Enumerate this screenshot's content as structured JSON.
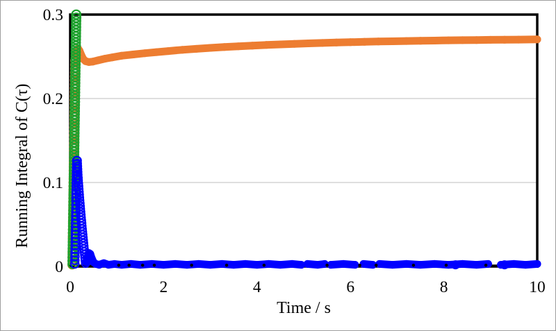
{
  "figure": {
    "background": "#ffffff",
    "border_color": "#9d9d9d"
  },
  "chart_data": {
    "type": "scatter",
    "title": "",
    "xlabel": "Time / s",
    "ylabel": "Running Integral of C(τ)",
    "xlim": [
      0,
      10
    ],
    "ylim": [
      0,
      0.3
    ],
    "x_ticks": [
      0,
      2,
      4,
      6,
      8,
      10
    ],
    "x_tick_labels": [
      "0",
      "2",
      "4",
      "6",
      "8",
      "10"
    ],
    "y_ticks": [
      0,
      0.1,
      0.2,
      0.3
    ],
    "y_tick_labels": [
      "0",
      "0.1",
      "0.2",
      "0.3"
    ],
    "grid": {
      "horizontal": [
        0.1,
        0.2
      ],
      "color": "#c9c9c9",
      "width": 1.3
    },
    "axes_border_color": "#000000",
    "legend": "none",
    "series": [
      {
        "name": "baseline-zero",
        "color": "#000000",
        "marker": "none",
        "marker_size": 0,
        "line_width": 3,
        "points": [
          [
            0.02,
            0.001
          ],
          [
            4.95,
            0.001
          ],
          null,
          [
            5.1,
            0.001
          ],
          [
            10,
            0.001
          ]
        ]
      },
      {
        "name": "orange-initial-rise",
        "color": "#ED7D31",
        "marker": "open-circle",
        "marker_size": 11,
        "stroke_width": 2.4,
        "line_width": 0,
        "column": {
          "t0": 0.04,
          "t1": 0.1,
          "v0": 0.002,
          "v1": 0.245,
          "n": 52,
          "power": 1
        }
      },
      {
        "name": "orange-running-integral",
        "color": "#ED7D31",
        "marker": "filled-circle",
        "marker_size": 11,
        "line_width": 11,
        "points": [
          [
            0.12,
            0.252
          ],
          [
            0.14,
            0.258
          ],
          [
            0.17,
            0.2595
          ],
          [
            0.2,
            0.257
          ],
          [
            0.24,
            0.2515
          ],
          [
            0.28,
            0.247
          ],
          [
            0.33,
            0.2445
          ],
          [
            0.4,
            0.2435
          ],
          [
            0.48,
            0.244
          ],
          [
            0.6,
            0.2455
          ],
          [
            0.75,
            0.2475
          ],
          [
            0.9,
            0.249
          ],
          [
            1.1,
            0.251
          ],
          [
            1.35,
            0.2525
          ],
          [
            1.6,
            0.254
          ],
          [
            1.85,
            0.2553
          ],
          [
            2.1,
            0.2565
          ],
          [
            2.4,
            0.258
          ],
          [
            2.7,
            0.2592
          ],
          [
            3.0,
            0.2603
          ],
          [
            3.3,
            0.2613
          ],
          [
            3.6,
            0.2622
          ],
          [
            3.9,
            0.263
          ],
          [
            4.2,
            0.2638
          ],
          [
            4.5,
            0.2645
          ],
          [
            4.8,
            0.2651
          ],
          [
            5.1,
            0.2657
          ],
          [
            5.4,
            0.2662
          ],
          [
            5.7,
            0.2667
          ],
          [
            6.0,
            0.2671
          ],
          [
            6.3,
            0.2675
          ],
          [
            6.6,
            0.2679
          ],
          [
            6.9,
            0.2682
          ],
          [
            7.2,
            0.2685
          ],
          [
            7.5,
            0.2688
          ],
          [
            7.8,
            0.269
          ],
          [
            8.1,
            0.2693
          ],
          [
            8.4,
            0.2695
          ],
          [
            8.7,
            0.2697
          ],
          [
            9.0,
            0.2699
          ],
          [
            9.3,
            0.27
          ],
          [
            9.6,
            0.2702
          ],
          [
            10.0,
            0.2704
          ]
        ]
      },
      {
        "name": "green-initial-rise",
        "color": "#1FA12E",
        "marker": "open-circle",
        "marker_size": 12.5,
        "stroke_width": 2.2,
        "line_width": 0,
        "column": {
          "t0": 0.05,
          "t1": 0.13,
          "v0": 0.003,
          "v1": 0.3,
          "n": 80,
          "power": 1
        }
      },
      {
        "name": "blue-initial-rise",
        "color": "#0000FF",
        "marker": "open-circle",
        "marker_size": 11.5,
        "stroke_width": 2,
        "line_width": 0,
        "column": {
          "t0": 0.1,
          "t1": 0.14,
          "v0": 0.003,
          "v1": 0.126,
          "n": 28,
          "power": 1
        }
      },
      {
        "name": "blue-fall",
        "color": "#0000FF",
        "marker": "open-circle",
        "marker_size": 11.5,
        "stroke_width": 2,
        "line_width": 0,
        "column": {
          "t0": 0.15,
          "t1": 0.33,
          "v0": 0.126,
          "v1": 0.004,
          "n": 36,
          "power": 1.3
        }
      },
      {
        "name": "blue-running-integral",
        "color": "#0000FF",
        "marker": "filled-circle",
        "marker_size": 11,
        "line_width": 11,
        "points": [
          [
            0.34,
            0.005
          ],
          [
            0.37,
            0.011
          ],
          [
            0.4,
            0.016
          ],
          [
            0.43,
            0.015
          ],
          [
            0.46,
            0.01
          ],
          [
            0.5,
            0.005
          ],
          [
            0.55,
            0.003
          ],
          [
            0.62,
            0.002
          ],
          [
            0.72,
            0.004
          ],
          [
            0.82,
            0.002
          ],
          [
            0.95,
            0.003
          ],
          [
            1.1,
            0.002
          ],
          [
            1.3,
            0.003
          ],
          [
            1.5,
            0.002
          ],
          [
            1.75,
            0.003
          ],
          [
            2.0,
            0.002
          ],
          [
            2.25,
            0.003
          ],
          [
            2.5,
            0.002
          ],
          [
            2.75,
            0.003
          ],
          [
            3.0,
            0.002
          ],
          [
            3.25,
            0.003
          ],
          [
            3.5,
            0.002
          ],
          [
            3.75,
            0.003
          ],
          [
            4.0,
            0.002
          ],
          [
            4.25,
            0.003
          ],
          [
            4.5,
            0.002
          ],
          [
            4.75,
            0.003
          ],
          [
            4.95,
            0.002
          ],
          null,
          [
            5.08,
            0.003
          ],
          [
            5.3,
            0.002
          ],
          [
            5.45,
            0.003
          ],
          null,
          [
            5.58,
            0.002
          ],
          [
            5.85,
            0.003
          ],
          [
            6.1,
            0.002
          ],
          null,
          [
            6.28,
            0.003
          ],
          [
            6.48,
            0.002
          ],
          null,
          [
            6.62,
            0.003
          ],
          [
            6.9,
            0.002
          ],
          [
            7.2,
            0.003
          ],
          [
            7.5,
            0.002
          ],
          [
            7.8,
            0.003
          ],
          [
            8.1,
            0.002
          ],
          [
            8.4,
            0.003
          ],
          [
            8.7,
            0.002
          ],
          [
            8.95,
            0.003
          ],
          null,
          [
            9.22,
            0.002
          ],
          [
            9.5,
            0.003
          ],
          [
            9.75,
            0.002
          ],
          [
            10.0,
            0.003
          ]
        ]
      },
      {
        "name": "blue-open-accents",
        "color": "#0000FF",
        "marker": "open-circle",
        "marker_size": 11,
        "stroke_width": 2,
        "line_width": 0,
        "points": [
          [
            8.25,
            0.002
          ],
          [
            9.3,
            0.002
          ]
        ]
      },
      {
        "name": "black-peek-dots",
        "color": "#000000",
        "marker": "filled-circle",
        "marker_size": 4.5,
        "line_width": 0,
        "points": [
          [
            1.04,
            0.0015
          ],
          [
            1.26,
            0.0015
          ],
          [
            1.55,
            0.0015
          ],
          [
            1.8,
            0.0015
          ],
          [
            2.6,
            0.0015
          ],
          [
            3.35,
            0.0015
          ],
          [
            4.15,
            0.0015
          ],
          [
            5.5,
            0.0015
          ],
          [
            6.2,
            0.0015
          ],
          [
            6.55,
            0.0015
          ],
          [
            7.35,
            0.0015
          ],
          [
            8.05,
            0.0015
          ],
          [
            8.9,
            0.0015
          ]
        ]
      }
    ]
  }
}
